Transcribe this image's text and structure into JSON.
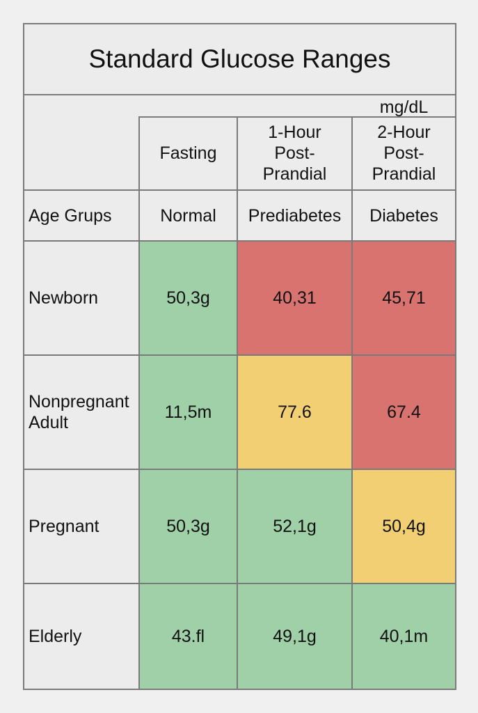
{
  "title": "Standard Glucose Ranges",
  "unit": "mg/dL",
  "colors": {
    "green": "#9fd0a8",
    "red": "#d9736f",
    "yellow": "#f2cf72"
  },
  "chart_data": {
    "type": "table",
    "title": "Standard Glucose Ranges",
    "unit": "mg/dL",
    "column_headers": [
      "Fasting",
      "1-Hour Post-Prandial",
      "2-Hour Post-Prandial"
    ],
    "row_header_label": "Age Grups",
    "sub_headers": [
      "Normal",
      "Prediabetes",
      "Diabetes"
    ],
    "rows": [
      {
        "label": "Newborn",
        "values": [
          "50,3g",
          "40,31",
          "45,71"
        ],
        "status": [
          "green",
          "red",
          "red"
        ]
      },
      {
        "label": "Nonpregnant Adult",
        "values": [
          "11,5m",
          "77.6",
          "67.4"
        ],
        "status": [
          "green",
          "yellow",
          "red"
        ]
      },
      {
        "label": "Pregnant",
        "values": [
          "50,3g",
          "52,1g",
          "50,4g"
        ],
        "status": [
          "green",
          "green",
          "yellow"
        ]
      },
      {
        "label": "Elderly",
        "values": [
          "43.fl",
          "49,1g",
          "40,1m"
        ],
        "status": [
          "green",
          "green",
          "green"
        ]
      }
    ]
  }
}
